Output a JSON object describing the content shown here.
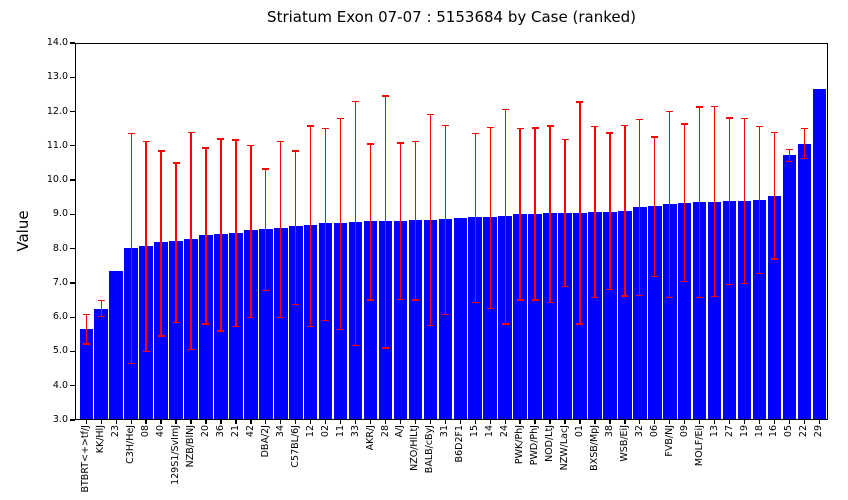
{
  "figure": {
    "background_color": "#ffffff",
    "frame_color": "#000000"
  },
  "chart_data": {
    "type": "bar",
    "title": "Striatum Exon 07-07 : 5153684 by Case (ranked)",
    "xlabel": "",
    "ylabel": "Value",
    "ylim": [
      3.0,
      14.0
    ],
    "ytick_values": [
      3.0,
      4.0,
      5.0,
      6.0,
      7.0,
      8.0,
      9.0,
      10.0,
      11.0,
      12.0,
      13.0,
      14.0
    ],
    "ytick_labels": [
      "3.0",
      "4.0",
      "5.0",
      "6.0",
      "7.0",
      "8.0",
      "9.0",
      "10.0",
      "11.0",
      "12.0",
      "13.0",
      "14.0"
    ],
    "grid": false,
    "legend_position": "none",
    "bar_color": "#0000ff",
    "error_bar_color": "#ff0000",
    "categories": [
      "BTBRT<+>tf/J",
      "KK/HlJ",
      "23",
      "C3H/HeJ",
      "08",
      "40",
      "129S1/SvImJ",
      "NZB/BlNJ",
      "20",
      "36",
      "21",
      "42",
      "DBA/2J",
      "34",
      "C57BL/6J",
      "12",
      "02",
      "11",
      "33",
      "AKR/J",
      "28",
      "A/J",
      "NZO/HlLtJ",
      "BALB/cByJ",
      "31",
      "B6D2F1",
      "15",
      "14",
      "24",
      "PWK/PhJ",
      "PWD/PhJ",
      "NOD/LtJ",
      "NZW/LacJ",
      "01",
      "BXSB/MpJ",
      "38",
      "WSB/EiJ",
      "32",
      "06",
      "FVB/NJ",
      "09",
      "MOLF/EiJ",
      "13",
      "27",
      "19",
      "18",
      "16",
      "05",
      "22",
      "29"
    ],
    "values": [
      5.65,
      6.25,
      7.35,
      8.03,
      8.09,
      8.18,
      8.22,
      8.27,
      8.4,
      8.42,
      8.47,
      8.53,
      8.57,
      8.6,
      8.65,
      8.7,
      8.74,
      8.76,
      8.78,
      8.8,
      8.81,
      8.82,
      8.84,
      8.85,
      8.86,
      8.89,
      8.91,
      8.93,
      8.94,
      9.0,
      9.01,
      9.03,
      9.04,
      9.05,
      9.06,
      9.08,
      9.1,
      9.21,
      9.25,
      9.31,
      9.34,
      9.36,
      9.37,
      9.38,
      9.39,
      9.41,
      9.53,
      10.72,
      11.05,
      12.65
    ],
    "error_low": [
      5.22,
      6.02,
      null,
      4.65,
      5.0,
      5.45,
      5.85,
      5.06,
      5.8,
      5.6,
      5.73,
      6.0,
      6.78,
      6.0,
      6.38,
      5.73,
      5.9,
      5.65,
      5.18,
      6.5,
      5.1,
      6.52,
      6.5,
      5.75,
      6.08,
      null,
      6.43,
      6.26,
      5.8,
      6.5,
      6.5,
      6.42,
      6.89,
      5.8,
      6.58,
      6.8,
      6.62,
      6.64,
      7.18,
      6.58,
      7.05,
      6.57,
      6.6,
      6.95,
      6.98,
      7.28,
      7.7,
      10.55,
      10.62,
      null
    ],
    "error_high": [
      6.08,
      6.48,
      null,
      11.35,
      11.13,
      10.85,
      10.5,
      11.38,
      10.94,
      11.2,
      11.17,
      11.0,
      10.32,
      11.13,
      10.85,
      11.58,
      11.5,
      11.79,
      12.3,
      11.05,
      12.45,
      11.08,
      11.13,
      11.92,
      11.6,
      null,
      11.36,
      11.53,
      12.05,
      11.5,
      11.52,
      11.58,
      11.18,
      12.28,
      11.57,
      11.37,
      11.6,
      11.77,
      11.26,
      12.01,
      11.64,
      12.13,
      12.15,
      11.81,
      11.79,
      11.56,
      11.38,
      10.9,
      11.5,
      null
    ]
  }
}
